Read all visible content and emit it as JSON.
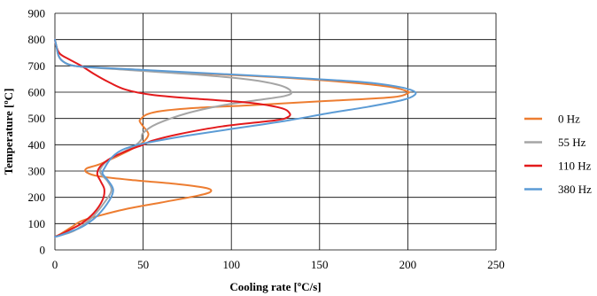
{
  "chart_data": {
    "type": "line",
    "title": "",
    "xlabel": "Cooling rate [ºC/s]",
    "ylabel": "Temperature [ºC]",
    "xlim": [
      0,
      250
    ],
    "ylim": [
      0,
      900
    ],
    "xticks": [
      0,
      50,
      100,
      150,
      200,
      250
    ],
    "yticks": [
      0,
      100,
      200,
      300,
      400,
      500,
      600,
      700,
      800,
      900
    ],
    "grid": true,
    "legend_position": "right",
    "series": [
      {
        "name": "0 Hz",
        "color": "#ED7D31",
        "points": [
          [
            0,
            800
          ],
          [
            1,
            770
          ],
          [
            2,
            740
          ],
          [
            4,
            720
          ],
          [
            8,
            705
          ],
          [
            15,
            697
          ],
          [
            40,
            688
          ],
          [
            80,
            672
          ],
          [
            130,
            655
          ],
          [
            170,
            635
          ],
          [
            190,
            620
          ],
          [
            199,
            605
          ],
          [
            200,
            596
          ],
          [
            190,
            580
          ],
          [
            150,
            565
          ],
          [
            110,
            550
          ],
          [
            80,
            540
          ],
          [
            60,
            528
          ],
          [
            52,
            515
          ],
          [
            49,
            500
          ],
          [
            48,
            490
          ],
          [
            50,
            470
          ],
          [
            53,
            440
          ],
          [
            50,
            410
          ],
          [
            44,
            385
          ],
          [
            35,
            355
          ],
          [
            25,
            325
          ],
          [
            18,
            310
          ],
          [
            18,
            295
          ],
          [
            25,
            280
          ],
          [
            45,
            265
          ],
          [
            70,
            250
          ],
          [
            86,
            235
          ],
          [
            88,
            220
          ],
          [
            80,
            205
          ],
          [
            60,
            180
          ],
          [
            40,
            155
          ],
          [
            25,
            130
          ],
          [
            15,
            110
          ],
          [
            9,
            85
          ],
          [
            3,
            60
          ],
          [
            0,
            50
          ]
        ]
      },
      {
        "name": "55 Hz",
        "color": "#A5A5A5",
        "points": [
          [
            0,
            800
          ],
          [
            1,
            770
          ],
          [
            2,
            740
          ],
          [
            4,
            720
          ],
          [
            8,
            705
          ],
          [
            15,
            697
          ],
          [
            40,
            685
          ],
          [
            80,
            667
          ],
          [
            110,
            648
          ],
          [
            128,
            625
          ],
          [
            134,
            600
          ],
          [
            130,
            585
          ],
          [
            115,
            570
          ],
          [
            95,
            550
          ],
          [
            75,
            520
          ],
          [
            58,
            480
          ],
          [
            50,
            445
          ],
          [
            49,
            420
          ],
          [
            45,
            395
          ],
          [
            38,
            370
          ],
          [
            30,
            340
          ],
          [
            26,
            310
          ],
          [
            26,
            290
          ],
          [
            30,
            260
          ],
          [
            32,
            225
          ],
          [
            28,
            180
          ],
          [
            22,
            130
          ],
          [
            16,
            95
          ],
          [
            10,
            70
          ],
          [
            3,
            55
          ],
          [
            0,
            50
          ]
        ]
      },
      {
        "name": "110 Hz",
        "color": "#E31A1C",
        "points": [
          [
            0,
            800
          ],
          [
            1,
            770
          ],
          [
            3,
            745
          ],
          [
            8,
            725
          ],
          [
            15,
            700
          ],
          [
            22,
            670
          ],
          [
            30,
            640
          ],
          [
            40,
            610
          ],
          [
            55,
            590
          ],
          [
            80,
            575
          ],
          [
            110,
            560
          ],
          [
            128,
            540
          ],
          [
            133,
            520
          ],
          [
            132,
            505
          ],
          [
            125,
            493
          ],
          [
            95,
            470
          ],
          [
            70,
            440
          ],
          [
            55,
            415
          ],
          [
            50,
            400
          ],
          [
            42,
            380
          ],
          [
            32,
            350
          ],
          [
            26,
            320
          ],
          [
            24,
            290
          ],
          [
            26,
            260
          ],
          [
            28,
            230
          ],
          [
            27,
            190
          ],
          [
            22,
            140
          ],
          [
            15,
            100
          ],
          [
            8,
            75
          ],
          [
            3,
            58
          ],
          [
            0,
            50
          ]
        ]
      },
      {
        "name": "380 Hz",
        "color": "#5B9BD5",
        "points": [
          [
            0,
            800
          ],
          [
            1,
            770
          ],
          [
            2,
            740
          ],
          [
            4,
            720
          ],
          [
            8,
            705
          ],
          [
            15,
            697
          ],
          [
            40,
            688
          ],
          [
            80,
            674
          ],
          [
            130,
            657
          ],
          [
            175,
            638
          ],
          [
            195,
            620
          ],
          [
            203,
            605
          ],
          [
            204,
            590
          ],
          [
            197,
            570
          ],
          [
            178,
            545
          ],
          [
            155,
            520
          ],
          [
            130,
            490
          ],
          [
            100,
            460
          ],
          [
            75,
            435
          ],
          [
            58,
            415
          ],
          [
            47,
            400
          ],
          [
            38,
            380
          ],
          [
            32,
            350
          ],
          [
            28,
            310
          ],
          [
            27,
            290
          ],
          [
            30,
            265
          ],
          [
            33,
            230
          ],
          [
            31,
            190
          ],
          [
            24,
            130
          ],
          [
            16,
            90
          ],
          [
            9,
            70
          ],
          [
            3,
            55
          ],
          [
            0,
            50
          ]
        ]
      }
    ]
  }
}
